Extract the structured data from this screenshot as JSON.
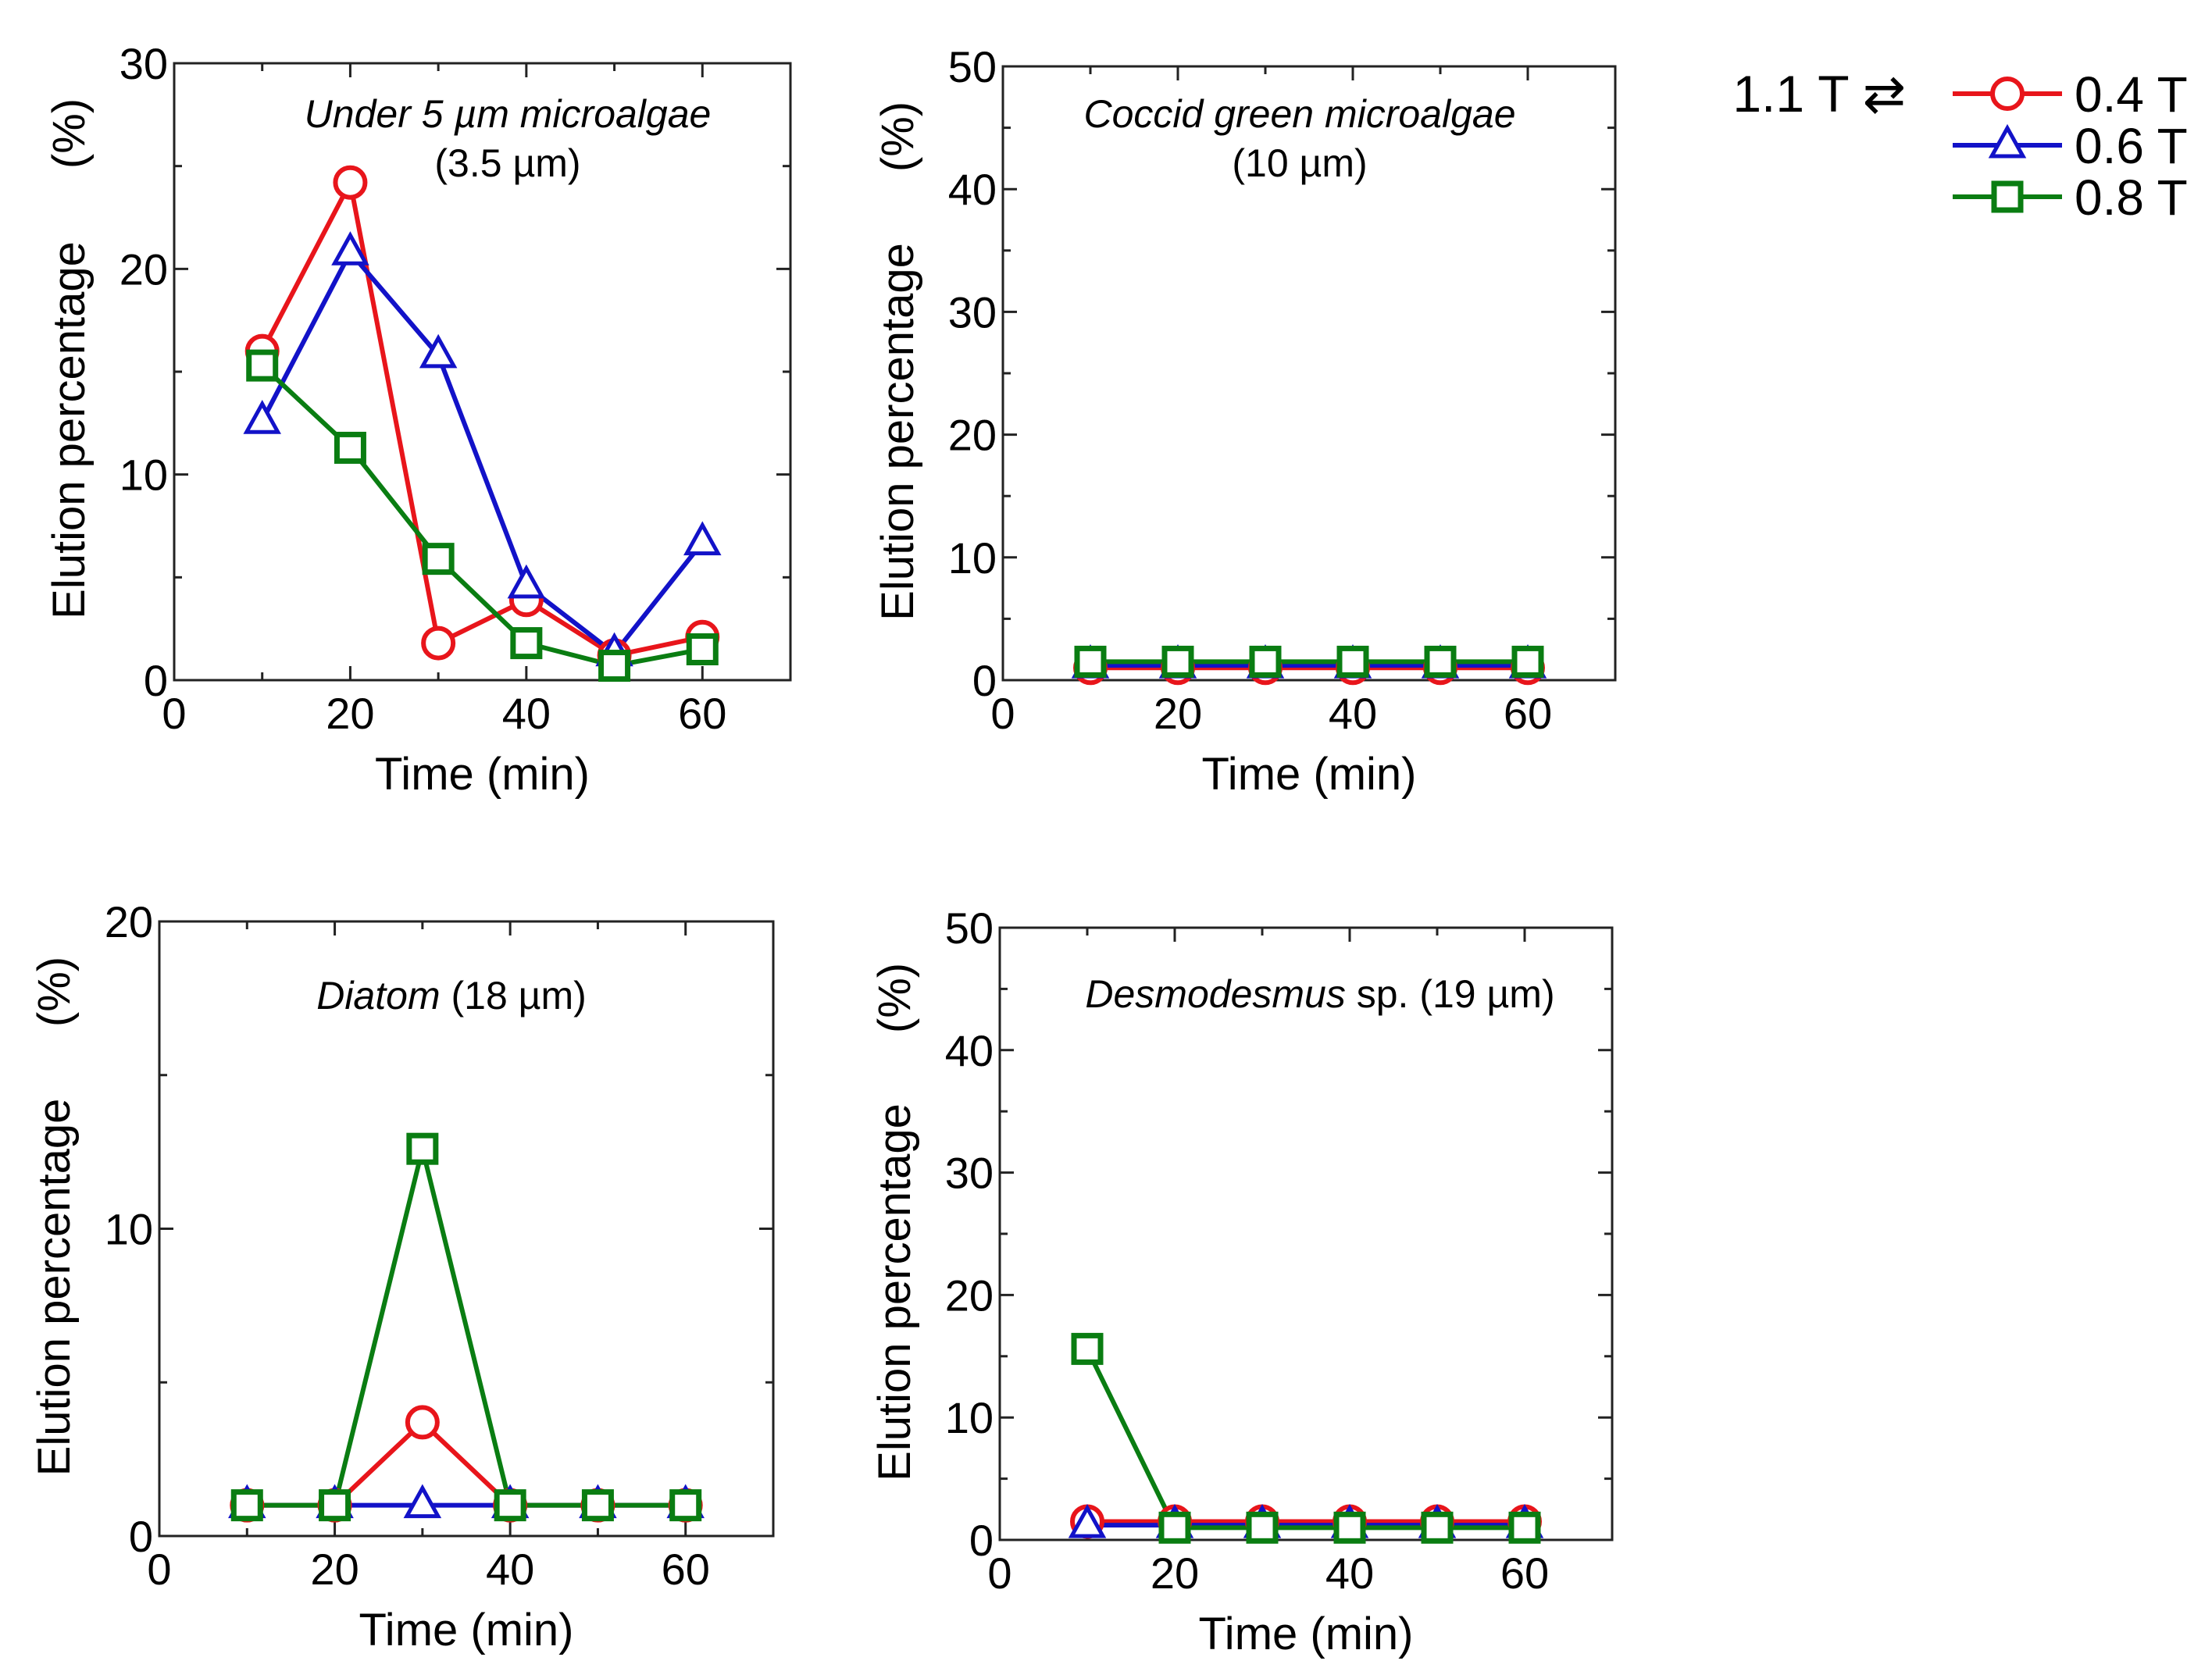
{
  "legend": {
    "prefix": "1.1 T ⇄",
    "entries": [
      {
        "label": "0.4 T",
        "color": "#e8151b",
        "marker": "circle"
      },
      {
        "label": "0.6 T",
        "color": "#1212c8",
        "marker": "triangle"
      },
      {
        "label": "0.8 T",
        "color": "#0a7d12",
        "marker": "square"
      }
    ]
  },
  "chart_data": [
    {
      "type": "line",
      "title_italic": "Under 5 µm microalgae",
      "title_normal": "",
      "subtitle": "(3.5 µm)",
      "xlabel": "Time (min)",
      "ylabel_main": "Elution percentage",
      "ylabel_unit": "(%)",
      "xlim": [
        0,
        70
      ],
      "ylim": [
        0,
        30
      ],
      "xticks": [
        0,
        20,
        40,
        60
      ],
      "yticks": [
        0,
        10,
        20,
        30
      ],
      "x": [
        10,
        20,
        30,
        40,
        50,
        60
      ],
      "series": [
        {
          "name": "0.4 T",
          "values": [
            16.0,
            24.2,
            1.8,
            3.9,
            1.2,
            2.1
          ]
        },
        {
          "name": "0.6 T",
          "values": [
            12.6,
            20.8,
            15.8,
            4.6,
            1.3,
            6.7
          ]
        },
        {
          "name": "0.8 T",
          "values": [
            15.3,
            11.3,
            5.9,
            1.8,
            0.7,
            1.5
          ]
        }
      ]
    },
    {
      "type": "line",
      "title_italic": "Coccid green microalgae",
      "title_normal": "",
      "subtitle": "(10 µm)",
      "xlabel": "Time (min)",
      "ylabel_main": "Elution percentage",
      "ylabel_unit": "(%)",
      "xlim": [
        0,
        70
      ],
      "ylim": [
        0,
        50
      ],
      "xticks": [
        0,
        20,
        40,
        60
      ],
      "yticks": [
        0,
        10,
        20,
        30,
        40,
        50
      ],
      "x": [
        10,
        20,
        30,
        40,
        50,
        60
      ],
      "series": [
        {
          "name": "0.4 T",
          "values": [
            1.0,
            1.0,
            1.0,
            1.0,
            1.0,
            1.0
          ]
        },
        {
          "name": "0.6 T",
          "values": [
            1.2,
            1.2,
            1.2,
            1.2,
            1.2,
            1.2
          ]
        },
        {
          "name": "0.8 T",
          "values": [
            1.5,
            1.5,
            1.5,
            1.5,
            1.5,
            1.5
          ]
        }
      ]
    },
    {
      "type": "line",
      "title_italic": "Diatom",
      "title_normal": " (18 µm)",
      "subtitle": "",
      "xlabel": "Time (min)",
      "ylabel_main": "Elution percentage",
      "ylabel_unit": "(%)",
      "xlim": [
        0,
        70
      ],
      "ylim": [
        0,
        20
      ],
      "xticks": [
        0,
        20,
        40,
        60
      ],
      "yticks": [
        0,
        10,
        20
      ],
      "x": [
        10,
        20,
        30,
        40,
        50,
        60
      ],
      "series": [
        {
          "name": "0.4 T",
          "values": [
            1.0,
            1.0,
            3.7,
            1.0,
            1.0,
            1.0
          ]
        },
        {
          "name": "0.6 T",
          "values": [
            1.0,
            1.0,
            1.0,
            1.0,
            1.0,
            1.0
          ]
        },
        {
          "name": "0.8 T",
          "values": [
            1.0,
            1.0,
            12.6,
            1.0,
            1.0,
            1.0
          ]
        }
      ]
    },
    {
      "type": "line",
      "title_italic": "Desmodesmus",
      "title_normal": " sp. (19 µm)",
      "subtitle": "",
      "xlabel": "Time (min)",
      "ylabel_main": "Elution percentage",
      "ylabel_unit": "(%)",
      "xlim": [
        0,
        70
      ],
      "ylim": [
        0,
        50
      ],
      "xticks": [
        0,
        20,
        40,
        60
      ],
      "yticks": [
        0,
        10,
        20,
        30,
        40,
        50
      ],
      "x": [
        10,
        20,
        30,
        40,
        50,
        60
      ],
      "series": [
        {
          "name": "0.4 T",
          "values": [
            1.5,
            1.5,
            1.5,
            1.5,
            1.5,
            1.5
          ]
        },
        {
          "name": "0.6 T",
          "values": [
            1.2,
            1.2,
            1.2,
            1.2,
            1.2,
            1.2
          ]
        },
        {
          "name": "0.8 T",
          "values": [
            15.6,
            1.0,
            1.0,
            1.0,
            1.0,
            1.0
          ]
        }
      ]
    }
  ]
}
